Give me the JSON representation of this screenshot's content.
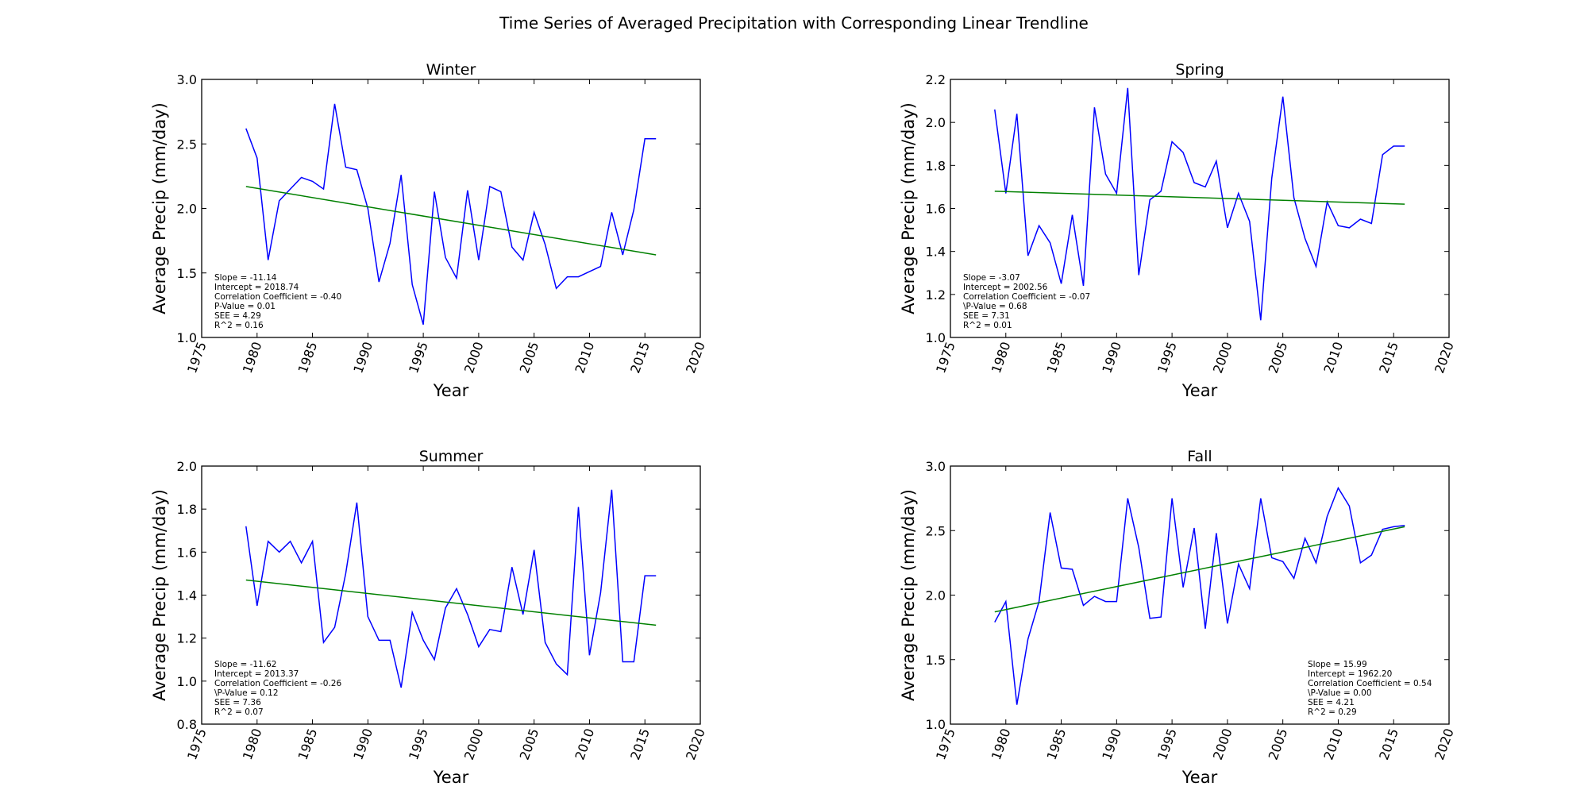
{
  "suptitle": "Time Series of Averaged Precipitation with Corresponding Linear Trendline",
  "colors": {
    "series": "#0000ff",
    "trend": "#008000"
  },
  "chart_data": [
    {
      "type": "line",
      "title": "Winter",
      "xlabel": "Year",
      "ylabel": "Average Precip (mm/day)",
      "xlim": [
        1975,
        2020
      ],
      "ylim": [
        1.0,
        3.0
      ],
      "xticks": [
        "1975",
        "1980",
        "1985",
        "1990",
        "1995",
        "2000",
        "2005",
        "2010",
        "2015",
        "2020"
      ],
      "yticks": [
        "1.0",
        "1.5",
        "2.0",
        "2.5",
        "3.0"
      ],
      "x": [
        1979,
        1980,
        1981,
        1982,
        1983,
        1984,
        1985,
        1986,
        1987,
        1988,
        1989,
        1990,
        1991,
        1992,
        1993,
        1994,
        1995,
        1996,
        1997,
        1998,
        1999,
        2000,
        2001,
        2002,
        2003,
        2004,
        2005,
        2006,
        2007,
        2008,
        2009,
        2010,
        2011,
        2012,
        2013,
        2014,
        2015,
        2016
      ],
      "values": [
        2.62,
        2.39,
        1.6,
        2.06,
        2.15,
        2.24,
        2.21,
        2.15,
        2.81,
        2.32,
        2.3,
        2.0,
        1.43,
        1.73,
        2.26,
        1.41,
        1.1,
        2.13,
        1.62,
        1.46,
        2.14,
        1.6,
        2.17,
        2.13,
        1.7,
        1.6,
        1.97,
        1.72,
        1.38,
        1.47,
        1.47,
        1.51,
        1.55,
        1.97,
        1.64,
        1.99,
        2.54,
        2.54
      ],
      "trend": [
        [
          1979,
          2.17
        ],
        [
          2016,
          1.64
        ]
      ],
      "stats": [
        "Slope = -11.14",
        "Intercept  = 2018.74",
        "Correlation Coefficient = -0.40",
        "P-Value = 0.01",
        "SEE = 4.29",
        "R^2 = 0.16"
      ],
      "stats_position": "bottom-left"
    },
    {
      "type": "line",
      "title": "Spring",
      "xlabel": "Year",
      "ylabel": "Average Precip (mm/day)",
      "xlim": [
        1975,
        2020
      ],
      "ylim": [
        1.0,
        2.2
      ],
      "xticks": [
        "1975",
        "1980",
        "1985",
        "1990",
        "1995",
        "2000",
        "2005",
        "2010",
        "2015",
        "2020"
      ],
      "yticks": [
        "1.0",
        "1.2",
        "1.4",
        "1.6",
        "1.8",
        "2.0",
        "2.2"
      ],
      "x": [
        1979,
        1980,
        1981,
        1982,
        1983,
        1984,
        1985,
        1986,
        1987,
        1988,
        1989,
        1990,
        1991,
        1992,
        1993,
        1994,
        1995,
        1996,
        1997,
        1998,
        1999,
        2000,
        2001,
        2002,
        2003,
        2004,
        2005,
        2006,
        2007,
        2008,
        2009,
        2010,
        2011,
        2012,
        2013,
        2014,
        2015,
        2016
      ],
      "values": [
        2.06,
        1.67,
        2.04,
        1.38,
        1.52,
        1.44,
        1.25,
        1.57,
        1.24,
        2.07,
        1.76,
        1.67,
        2.16,
        1.29,
        1.64,
        1.68,
        1.91,
        1.86,
        1.72,
        1.7,
        1.82,
        1.51,
        1.67,
        1.54,
        1.08,
        1.74,
        2.12,
        1.65,
        1.46,
        1.33,
        1.63,
        1.52,
        1.51,
        1.55,
        1.53,
        1.85,
        1.89,
        1.89
      ],
      "trend": [
        [
          1979,
          1.68
        ],
        [
          2016,
          1.62
        ]
      ],
      "stats": [
        "Slope = -3.07",
        "Intercept  = 2002.56",
        "Correlation Coefficient = -0.07",
        "\\P-Value = 0.68",
        "SEE = 7.31",
        "R^2 = 0.01"
      ],
      "stats_position": "bottom-left"
    },
    {
      "type": "line",
      "title": "Summer",
      "xlabel": "Year",
      "ylabel": "Average Precip (mm/day)",
      "xlim": [
        1975,
        2020
      ],
      "ylim": [
        0.8,
        2.0
      ],
      "xticks": [
        "1975",
        "1980",
        "1985",
        "1990",
        "1995",
        "2000",
        "2005",
        "2010",
        "2015",
        "2020"
      ],
      "yticks": [
        "0.8",
        "1.0",
        "1.2",
        "1.4",
        "1.6",
        "1.8",
        "2.0"
      ],
      "x": [
        1979,
        1980,
        1981,
        1982,
        1983,
        1984,
        1985,
        1986,
        1987,
        1988,
        1989,
        1990,
        1991,
        1992,
        1993,
        1994,
        1995,
        1996,
        1997,
        1998,
        1999,
        2000,
        2001,
        2002,
        2003,
        2004,
        2005,
        2006,
        2007,
        2008,
        2009,
        2010,
        2011,
        2012,
        2013,
        2014,
        2015,
        2016
      ],
      "values": [
        1.72,
        1.35,
        1.65,
        1.6,
        1.65,
        1.55,
        1.65,
        1.18,
        1.25,
        1.5,
        1.83,
        1.3,
        1.19,
        1.19,
        0.97,
        1.32,
        1.19,
        1.1,
        1.34,
        1.43,
        1.31,
        1.16,
        1.24,
        1.23,
        1.53,
        1.31,
        1.61,
        1.18,
        1.08,
        1.03,
        1.81,
        1.12,
        1.41,
        1.89,
        1.09,
        1.09,
        1.49,
        1.49
      ],
      "trend": [
        [
          1979,
          1.47
        ],
        [
          2016,
          1.26
        ]
      ],
      "stats": [
        "Slope = -11.62",
        "Intercept  = 2013.37",
        "Correlation Coefficient = -0.26",
        "\\P-Value = 0.12",
        "SEE = 7.36",
        "R^2 = 0.07"
      ],
      "stats_position": "bottom-left"
    },
    {
      "type": "line",
      "title": "Fall",
      "xlabel": "Year",
      "ylabel": "Average Precip (mm/day)",
      "xlim": [
        1975,
        2020
      ],
      "ylim": [
        1.0,
        3.0
      ],
      "xticks": [
        "1975",
        "1980",
        "1985",
        "1990",
        "1995",
        "2000",
        "2005",
        "2010",
        "2015",
        "2020"
      ],
      "yticks": [
        "1.0",
        "1.5",
        "2.0",
        "2.5",
        "3.0"
      ],
      "x": [
        1979,
        1980,
        1981,
        1982,
        1983,
        1984,
        1985,
        1986,
        1987,
        1988,
        1989,
        1990,
        1991,
        1992,
        1993,
        1994,
        1995,
        1996,
        1997,
        1998,
        1999,
        2000,
        2001,
        2002,
        2003,
        2004,
        2005,
        2006,
        2007,
        2008,
        2009,
        2010,
        2011,
        2012,
        2013,
        2014,
        2015,
        2016
      ],
      "values": [
        1.79,
        1.95,
        1.15,
        1.66,
        1.95,
        2.64,
        2.21,
        2.2,
        1.92,
        1.99,
        1.95,
        1.95,
        2.75,
        2.37,
        1.82,
        1.83,
        2.75,
        2.06,
        2.52,
        1.74,
        2.48,
        1.78,
        2.24,
        2.05,
        2.75,
        2.29,
        2.26,
        2.13,
        2.44,
        2.25,
        2.61,
        2.83,
        2.69,
        2.25,
        2.31,
        2.51,
        2.53,
        2.54
      ],
      "trend": [
        [
          1979,
          1.87
        ],
        [
          2016,
          2.53
        ]
      ],
      "stats": [
        "Slope = 15.99",
        "Intercept  = 1962.20",
        "Correlation Coefficient = 0.54",
        "\\P-Value = 0.00",
        "SEE = 4.21",
        "R^2 = 0.29"
      ],
      "stats_position": "bottom-right"
    }
  ]
}
